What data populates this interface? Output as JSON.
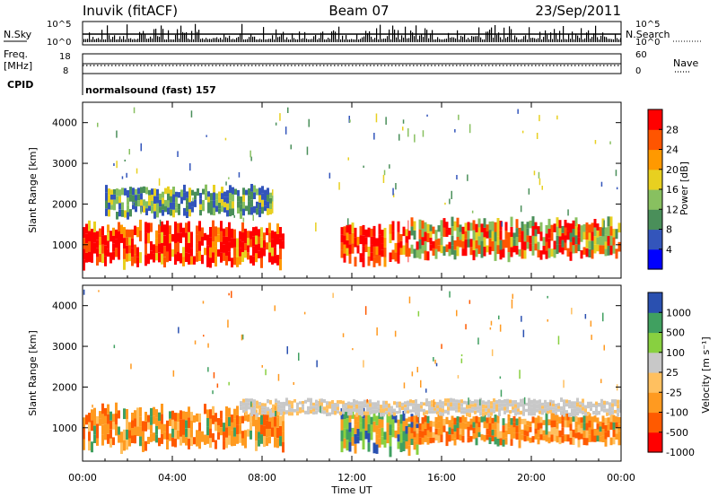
{
  "header": {
    "station": "Inuvik (fitACF)",
    "beam": "Beam 07",
    "date": "23/Sep/2011"
  },
  "status_panels": {
    "nsky_label": "N.Sky",
    "nsearch_label": "N.Search",
    "counts_ticks": [
      "10^5",
      "10^0"
    ],
    "freq_label": "Freq.",
    "freq_unit": "[MHz]",
    "freq_ticks": [
      "18",
      "8"
    ],
    "nave_label": "Nave",
    "nave_ticks": [
      "60",
      "0"
    ],
    "cpid_label": "CPID",
    "cpid_value": "normalsound (fast) 157"
  },
  "chart_data": [
    {
      "type": "heatmap",
      "panel": "power",
      "xlabel": "Time UT",
      "ylabel": "Slant Range [km]",
      "xlim": [
        0,
        24
      ],
      "ylim": [
        180,
        4500
      ],
      "x_ticks": [
        "00:00",
        "04:00",
        "08:00",
        "12:00",
        "16:00",
        "20:00",
        "00:00"
      ],
      "y_ticks": [
        1000,
        2000,
        3000,
        4000
      ],
      "colorbar": {
        "label": "Power [dB]",
        "range": [
          0,
          32
        ],
        "ticks": [
          "28",
          "24",
          "20",
          "16",
          "12",
          "8",
          "4"
        ],
        "colors": [
          "#0000ff",
          "#3355bb",
          "#4a8f5a",
          "#88c060",
          "#e8d020",
          "#ff9900",
          "#ff5500",
          "#ff0000"
        ]
      },
      "bands": [
        {
          "t0": 0.0,
          "t1": 9.0,
          "r0": 500,
          "r1": 1500,
          "value": "high"
        },
        {
          "t0": 11.5,
          "t1": 14.5,
          "r0": 550,
          "r1": 1500,
          "value": "high"
        },
        {
          "t0": 14.5,
          "t1": 24.0,
          "r0": 700,
          "r1": 1600,
          "value": "medium"
        },
        {
          "t0": 1.0,
          "t1": 8.5,
          "r0": 1700,
          "r1": 2400,
          "value": "low"
        }
      ]
    },
    {
      "type": "heatmap",
      "panel": "velocity",
      "xlabel": "Time UT",
      "ylabel": "Slant Range [km]",
      "xlim": [
        0,
        24
      ],
      "ylim": [
        180,
        4500
      ],
      "x_ticks": [
        "00:00",
        "04:00",
        "08:00",
        "12:00",
        "16:00",
        "20:00",
        "00:00"
      ],
      "y_ticks": [
        1000,
        2000,
        3000,
        4000
      ],
      "colorbar": {
        "label": "Velocity [m s⁻¹]",
        "ticks": [
          "1000",
          "500",
          "100",
          "25",
          "-25",
          "-100",
          "-500",
          "-1000"
        ],
        "colors": [
          "#ff0000",
          "#ff5a00",
          "#ff9a20",
          "#ffc060",
          "#c8c8c8",
          "#88d040",
          "#40a060",
          "#2a50b0"
        ]
      },
      "bands": [
        {
          "t0": 0.0,
          "t1": 9.0,
          "r0": 500,
          "r1": 1500,
          "value": "negative"
        },
        {
          "t0": 11.5,
          "t1": 15.0,
          "r0": 400,
          "r1": 1400,
          "value": "mixed"
        },
        {
          "t0": 14.5,
          "t1": 24.0,
          "r0": 600,
          "r1": 1300,
          "value": "negative"
        },
        {
          "t0": 7.0,
          "t1": 24.0,
          "r0": 1300,
          "r1": 1700,
          "value": "near-zero"
        }
      ]
    }
  ]
}
